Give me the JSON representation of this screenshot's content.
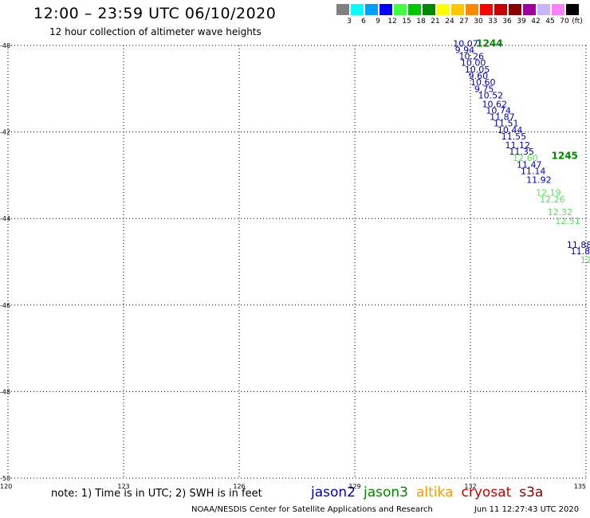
{
  "header": {
    "title": "12:00 – 23:59 UTC 06/10/2020",
    "subtitle": "12 hour collection of altimeter wave heights"
  },
  "colorbar": {
    "unit": "(ft)",
    "bins": [
      {
        "label": "3",
        "color": "#808080"
      },
      {
        "label": "6",
        "color": "#00ffff"
      },
      {
        "label": "9",
        "color": "#00a0ff"
      },
      {
        "label": "12",
        "color": "#0000ff"
      },
      {
        "label": "15",
        "color": "#40ff40"
      },
      {
        "label": "18",
        "color": "#00c800"
      },
      {
        "label": "21",
        "color": "#008800"
      },
      {
        "label": "24",
        "color": "#ffff00"
      },
      {
        "label": "27",
        "color": "#ffc800"
      },
      {
        "label": "30",
        "color": "#ff8800"
      },
      {
        "label": "33",
        "color": "#ff0000"
      },
      {
        "label": "36",
        "color": "#c80000"
      },
      {
        "label": "39",
        "color": "#880000"
      },
      {
        "label": "42",
        "color": "#a000a0"
      },
      {
        "label": "45",
        "color": "#c8b4ff"
      },
      {
        "label": "70",
        "color": "#ff80ff"
      },
      {
        "label": "",
        "color": "#000000"
      }
    ]
  },
  "chart_data": {
    "type": "scatter",
    "xlim": [
      120,
      135
    ],
    "ylim": [
      -50,
      -40
    ],
    "xticks": [
      "120",
      "123",
      "126",
      "129",
      "132",
      "135"
    ],
    "yticks": [
      "-40",
      "-42",
      "-44",
      "-46",
      "-48",
      "-50"
    ],
    "grid": true,
    "pass_labels": [
      {
        "text": "1244",
        "lon": 132.15,
        "lat": -39.95,
        "color": "#008800"
      },
      {
        "text": "1245",
        "lon": 134.1,
        "lat": -42.55,
        "color": "#008800"
      }
    ],
    "series": [
      {
        "name": "jason2",
        "color": "#0000c8",
        "points": [
          {
            "lon": 131.55,
            "lat": -39.95,
            "swh": "10.07"
          },
          {
            "lon": 131.6,
            "lat": -40.1,
            "swh": "9.94"
          },
          {
            "lon": 131.7,
            "lat": -40.25,
            "swh": "10.26"
          },
          {
            "lon": 131.75,
            "lat": -40.4,
            "swh": "10.00"
          },
          {
            "lon": 131.85,
            "lat": -40.55,
            "swh": "10.05"
          },
          {
            "lon": 131.95,
            "lat": -40.7,
            "swh": "9.60"
          },
          {
            "lon": 132.0,
            "lat": -40.85,
            "swh": "10.60"
          },
          {
            "lon": 132.1,
            "lat": -41.0,
            "swh": "9.75"
          },
          {
            "lon": 132.2,
            "lat": -41.15,
            "swh": "10.52"
          },
          {
            "lon": 132.3,
            "lat": -41.35,
            "swh": "10.62"
          },
          {
            "lon": 132.4,
            "lat": -41.5,
            "swh": "10.74"
          },
          {
            "lon": 132.5,
            "lat": -41.65,
            "swh": "11.87"
          },
          {
            "lon": 132.6,
            "lat": -41.8,
            "swh": "11.51"
          },
          {
            "lon": 132.7,
            "lat": -41.95,
            "swh": "10.44"
          },
          {
            "lon": 132.8,
            "lat": -42.1,
            "swh": "11.55"
          },
          {
            "lon": 132.9,
            "lat": -42.3,
            "swh": "11.12"
          },
          {
            "lon": 133.0,
            "lat": -42.45,
            "swh": "11.35"
          },
          {
            "lon": 133.2,
            "lat": -42.75,
            "swh": "11.47"
          },
          {
            "lon": 133.3,
            "lat": -42.9,
            "swh": "11.14"
          },
          {
            "lon": 133.45,
            "lat": -43.1,
            "swh": "11.92"
          },
          {
            "lon": 134.5,
            "lat": -44.6,
            "swh": "11.88"
          },
          {
            "lon": 134.6,
            "lat": -44.75,
            "swh": "11.8"
          }
        ]
      },
      {
        "name": "jason3",
        "color": "#60e060",
        "points": [
          {
            "lon": 133.1,
            "lat": -42.6,
            "swh": "12.60"
          },
          {
            "lon": 133.7,
            "lat": -43.4,
            "swh": "12.19"
          },
          {
            "lon": 133.8,
            "lat": -43.55,
            "swh": "12.26"
          },
          {
            "lon": 134.0,
            "lat": -43.85,
            "swh": "12.32"
          },
          {
            "lon": 134.2,
            "lat": -44.05,
            "swh": "12.51"
          },
          {
            "lon": 134.85,
            "lat": -44.95,
            "swh": "12"
          }
        ]
      }
    ]
  },
  "note": "note:  1) Time is in UTC;  2) SWH is in feet",
  "legend": [
    {
      "label": "jason2",
      "color": "#0000c8"
    },
    {
      "label": "jason3",
      "color": "#008800"
    },
    {
      "label": "altika",
      "color": "#ff9900"
    },
    {
      "label": "cryosat",
      "color": "#cc0000"
    },
    {
      "label": "s3a",
      "color": "#880000"
    }
  ],
  "footer": {
    "credit": "NOAA/NESDIS Center for Satellite Applications and Research",
    "timestamp": "Jun 11 12:27:43 UTC 2020"
  }
}
